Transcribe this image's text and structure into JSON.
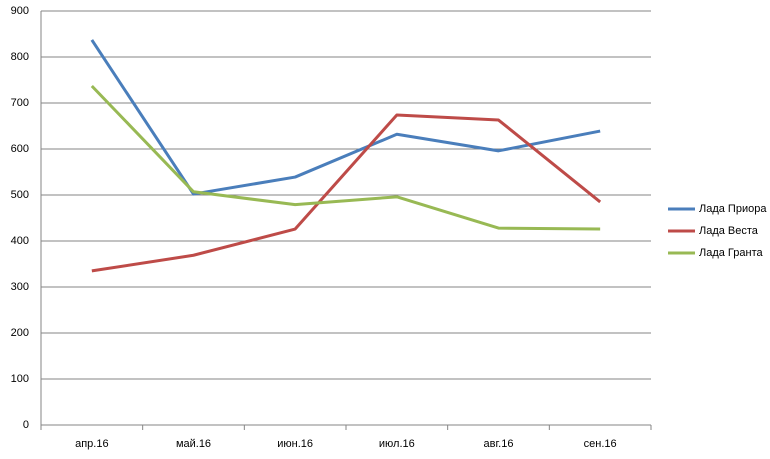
{
  "chart_data": {
    "type": "line",
    "categories": [
      "апр.16",
      "май.16",
      "июн.16",
      "июл.16",
      "авг.16",
      "сен.16"
    ],
    "series": [
      {
        "name": "Лада Приора",
        "color": "#4a7ebb",
        "values": [
          837,
          502,
          539,
          632,
          596,
          639
        ]
      },
      {
        "name": "Лада Веста",
        "color": "#be4b48",
        "values": [
          335,
          369,
          426,
          674,
          663,
          485
        ]
      },
      {
        "name": "Лада Гранта",
        "color": "#98b954",
        "values": [
          737,
          507,
          479,
          496,
          428,
          426
        ]
      }
    ],
    "ylim": [
      0,
      900
    ],
    "yticks": [
      0,
      100,
      200,
      300,
      400,
      500,
      600,
      700,
      800,
      900
    ],
    "grid": true,
    "legend": "right"
  }
}
